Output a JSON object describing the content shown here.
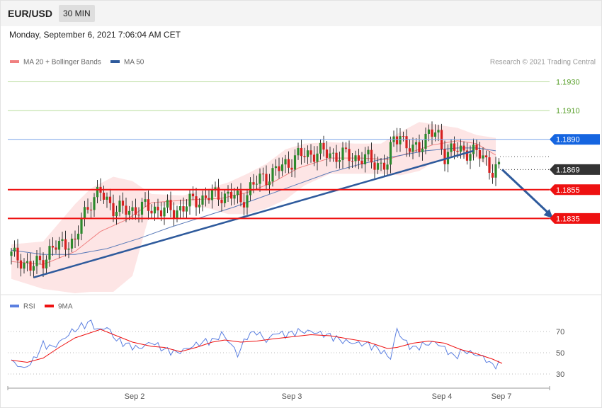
{
  "header": {
    "pair": "EUR/USD",
    "timeframe": "30 MIN",
    "datetime": "Monday, September 6, 2021 7:06:04 AM CET"
  },
  "price_panel": {
    "legend": [
      {
        "label": "MA 20 + Bollinger Bands",
        "color": "#f08080"
      },
      {
        "label": "MA 50",
        "color": "#2e5a9c"
      }
    ],
    "copyright": "Research © 2021 Trading Central",
    "levels": [
      {
        "value": 1.193,
        "label": "1.1930",
        "style": "green-thin",
        "color": "#5aa02c"
      },
      {
        "value": 1.191,
        "label": "1.1910",
        "style": "green-thin",
        "color": "#5aa02c"
      },
      {
        "value": 1.189,
        "label": "1.1890",
        "style": "blue-tag",
        "color": "#1565e0"
      },
      {
        "value": 1.1869,
        "label": "1.1869",
        "style": "current-tag",
        "color": "#333333"
      },
      {
        "value": 1.1855,
        "label": "1.1855",
        "style": "red-tag",
        "color": "#ee1111"
      },
      {
        "value": 1.1835,
        "label": "1.1835",
        "style": "red-tag",
        "color": "#ee1111"
      }
    ]
  },
  "rsi_panel": {
    "legend": [
      {
        "label": "RSI",
        "color": "#5b7fe0"
      },
      {
        "label": "9MA",
        "color": "#ee1111"
      }
    ],
    "levels": [
      "70",
      "50",
      "30"
    ]
  },
  "x_axis": {
    "labels": [
      "Sep 2",
      "Sep 3",
      "Sep 4",
      "Sep 7"
    ]
  },
  "chart_data": {
    "type": "candlestick",
    "price_range": [
      1.1783,
      1.1945
    ],
    "rsi_range": [
      18,
      86
    ],
    "bars": 154,
    "support_line": {
      "start_bar": 7,
      "start_price": 1.1794,
      "end_bar": 145,
      "end_price": 1.1882
    },
    "projection_arrow": {
      "from_bar": 154,
      "from_price": 1.1869,
      "to_bar": 170,
      "to_price": 1.1835
    },
    "bollinger_band": [
      {
        "bar": 0,
        "upper": 1.1817,
        "lower": 1.1793
      },
      {
        "bar": 10,
        "upper": 1.1819,
        "lower": 1.1786
      },
      {
        "bar": 20,
        "upper": 1.1845,
        "lower": 1.1783
      },
      {
        "bar": 25,
        "upper": 1.1856,
        "lower": 1.1784
      },
      {
        "bar": 32,
        "upper": 1.1864,
        "lower": 1.1784
      },
      {
        "bar": 38,
        "upper": 1.1861,
        "lower": 1.1795
      },
      {
        "bar": 44,
        "upper": 1.1852,
        "lower": 1.1843
      },
      {
        "bar": 54,
        "upper": 1.1851,
        "lower": 1.1845
      },
      {
        "bar": 62,
        "upper": 1.1856,
        "lower": 1.1842
      },
      {
        "bar": 68,
        "upper": 1.186,
        "lower": 1.1838
      },
      {
        "bar": 74,
        "upper": 1.1866,
        "lower": 1.1838
      },
      {
        "bar": 80,
        "upper": 1.1873,
        "lower": 1.1842
      },
      {
        "bar": 86,
        "upper": 1.1883,
        "lower": 1.1848
      },
      {
        "bar": 92,
        "upper": 1.1887,
        "lower": 1.1858
      },
      {
        "bar": 100,
        "upper": 1.1888,
        "lower": 1.1866
      },
      {
        "bar": 108,
        "upper": 1.1887,
        "lower": 1.1866
      },
      {
        "bar": 116,
        "upper": 1.1887,
        "lower": 1.1866
      },
      {
        "bar": 122,
        "upper": 1.1895,
        "lower": 1.1865
      },
      {
        "bar": 128,
        "upper": 1.1902,
        "lower": 1.1868
      },
      {
        "bar": 134,
        "upper": 1.19,
        "lower": 1.1876
      },
      {
        "bar": 140,
        "upper": 1.1898,
        "lower": 1.1878
      },
      {
        "bar": 146,
        "upper": 1.1893,
        "lower": 1.1877
      },
      {
        "bar": 152,
        "upper": 1.1891,
        "lower": 1.1867
      }
    ],
    "ma20": [
      {
        "bar": 0,
        "value": 1.1805
      },
      {
        "bar": 10,
        "value": 1.1803
      },
      {
        "bar": 20,
        "value": 1.1812
      },
      {
        "bar": 28,
        "value": 1.1826
      },
      {
        "bar": 36,
        "value": 1.1834
      },
      {
        "bar": 44,
        "value": 1.1846
      },
      {
        "bar": 56,
        "value": 1.1848
      },
      {
        "bar": 66,
        "value": 1.1849
      },
      {
        "bar": 74,
        "value": 1.1853
      },
      {
        "bar": 82,
        "value": 1.186
      },
      {
        "bar": 90,
        "value": 1.187
      },
      {
        "bar": 100,
        "value": 1.1877
      },
      {
        "bar": 110,
        "value": 1.1877
      },
      {
        "bar": 118,
        "value": 1.1876
      },
      {
        "bar": 124,
        "value": 1.188
      },
      {
        "bar": 132,
        "value": 1.1886
      },
      {
        "bar": 140,
        "value": 1.1889
      },
      {
        "bar": 146,
        "value": 1.1887
      },
      {
        "bar": 152,
        "value": 1.1879
      }
    ],
    "ma50": [
      {
        "bar": 0,
        "value": 1.1813
      },
      {
        "bar": 10,
        "value": 1.181
      },
      {
        "bar": 20,
        "value": 1.181
      },
      {
        "bar": 30,
        "value": 1.1814
      },
      {
        "bar": 40,
        "value": 1.1821
      },
      {
        "bar": 50,
        "value": 1.1829
      },
      {
        "bar": 60,
        "value": 1.1836
      },
      {
        "bar": 70,
        "value": 1.1843
      },
      {
        "bar": 80,
        "value": 1.1851
      },
      {
        "bar": 90,
        "value": 1.1859
      },
      {
        "bar": 100,
        "value": 1.1867
      },
      {
        "bar": 110,
        "value": 1.1873
      },
      {
        "bar": 120,
        "value": 1.1878
      },
      {
        "bar": 130,
        "value": 1.1882
      },
      {
        "bar": 140,
        "value": 1.1884
      },
      {
        "bar": 146,
        "value": 1.1884
      },
      {
        "bar": 152,
        "value": 1.1882
      }
    ],
    "close_path": [
      {
        "bar": 0,
        "value": 1.1809
      },
      {
        "bar": 3,
        "value": 1.1807
      },
      {
        "bar": 6,
        "value": 1.18
      },
      {
        "bar": 9,
        "value": 1.1805
      },
      {
        "bar": 12,
        "value": 1.1812
      },
      {
        "bar": 15,
        "value": 1.1816
      },
      {
        "bar": 18,
        "value": 1.182
      },
      {
        "bar": 20,
        "value": 1.1816
      },
      {
        "bar": 22,
        "value": 1.1835
      },
      {
        "bar": 25,
        "value": 1.1848
      },
      {
        "bar": 28,
        "value": 1.1852
      },
      {
        "bar": 30,
        "value": 1.1848
      },
      {
        "bar": 32,
        "value": 1.1843
      },
      {
        "bar": 35,
        "value": 1.184
      },
      {
        "bar": 40,
        "value": 1.1842
      },
      {
        "bar": 45,
        "value": 1.1842
      },
      {
        "bar": 50,
        "value": 1.184
      },
      {
        "bar": 54,
        "value": 1.1843
      },
      {
        "bar": 58,
        "value": 1.1848
      },
      {
        "bar": 62,
        "value": 1.185
      },
      {
        "bar": 66,
        "value": 1.1852
      },
      {
        "bar": 70,
        "value": 1.185
      },
      {
        "bar": 72,
        "value": 1.1847
      },
      {
        "bar": 75,
        "value": 1.1856
      },
      {
        "bar": 79,
        "value": 1.1864
      },
      {
        "bar": 82,
        "value": 1.1866
      },
      {
        "bar": 86,
        "value": 1.1873
      },
      {
        "bar": 90,
        "value": 1.1878
      },
      {
        "bar": 95,
        "value": 1.1881
      },
      {
        "bar": 100,
        "value": 1.188
      },
      {
        "bar": 105,
        "value": 1.1878
      },
      {
        "bar": 110,
        "value": 1.1877
      },
      {
        "bar": 114,
        "value": 1.1874
      },
      {
        "bar": 118,
        "value": 1.1872
      },
      {
        "bar": 120,
        "value": 1.189
      },
      {
        "bar": 122,
        "value": 1.1895
      },
      {
        "bar": 124,
        "value": 1.1885
      },
      {
        "bar": 126,
        "value": 1.1881
      },
      {
        "bar": 128,
        "value": 1.1886
      },
      {
        "bar": 131,
        "value": 1.1895
      },
      {
        "bar": 134,
        "value": 1.1891
      },
      {
        "bar": 136,
        "value": 1.188
      },
      {
        "bar": 138,
        "value": 1.1883
      },
      {
        "bar": 141,
        "value": 1.1881
      },
      {
        "bar": 144,
        "value": 1.1883
      },
      {
        "bar": 146,
        "value": 1.188
      },
      {
        "bar": 149,
        "value": 1.1875
      },
      {
        "bar": 151,
        "value": 1.1869
      },
      {
        "bar": 154,
        "value": 1.1869
      }
    ],
    "rsi": [
      {
        "bar": 0,
        "value": 42
      },
      {
        "bar": 4,
        "value": 35
      },
      {
        "bar": 7,
        "value": 43
      },
      {
        "bar": 10,
        "value": 58
      },
      {
        "bar": 13,
        "value": 55
      },
      {
        "bar": 16,
        "value": 62
      },
      {
        "bar": 19,
        "value": 70
      },
      {
        "bar": 22,
        "value": 75
      },
      {
        "bar": 25,
        "value": 79
      },
      {
        "bar": 27,
        "value": 71
      },
      {
        "bar": 30,
        "value": 74
      },
      {
        "bar": 33,
        "value": 62
      },
      {
        "bar": 36,
        "value": 58
      },
      {
        "bar": 40,
        "value": 54
      },
      {
        "bar": 44,
        "value": 60
      },
      {
        "bar": 48,
        "value": 53
      },
      {
        "bar": 52,
        "value": 50
      },
      {
        "bar": 56,
        "value": 55
      },
      {
        "bar": 60,
        "value": 60
      },
      {
        "bar": 64,
        "value": 62
      },
      {
        "bar": 66,
        "value": 68
      },
      {
        "bar": 69,
        "value": 58
      },
      {
        "bar": 71,
        "value": 48
      },
      {
        "bar": 74,
        "value": 66
      },
      {
        "bar": 77,
        "value": 70
      },
      {
        "bar": 80,
        "value": 61
      },
      {
        "bar": 83,
        "value": 69
      },
      {
        "bar": 86,
        "value": 67
      },
      {
        "bar": 90,
        "value": 70
      },
      {
        "bar": 94,
        "value": 70
      },
      {
        "bar": 97,
        "value": 68
      },
      {
        "bar": 100,
        "value": 66
      },
      {
        "bar": 104,
        "value": 61
      },
      {
        "bar": 108,
        "value": 59
      },
      {
        "bar": 112,
        "value": 58
      },
      {
        "bar": 116,
        "value": 52
      },
      {
        "bar": 119,
        "value": 45
      },
      {
        "bar": 121,
        "value": 72
      },
      {
        "bar": 123,
        "value": 62
      },
      {
        "bar": 126,
        "value": 54
      },
      {
        "bar": 130,
        "value": 58
      },
      {
        "bar": 133,
        "value": 60
      },
      {
        "bar": 136,
        "value": 54
      },
      {
        "bar": 139,
        "value": 46
      },
      {
        "bar": 142,
        "value": 52
      },
      {
        "bar": 145,
        "value": 49
      },
      {
        "bar": 148,
        "value": 46
      },
      {
        "bar": 151,
        "value": 38
      },
      {
        "bar": 154,
        "value": 40
      }
    ],
    "rsi_9ma": [
      {
        "bar": 0,
        "value": 43
      },
      {
        "bar": 5,
        "value": 41
      },
      {
        "bar": 10,
        "value": 45
      },
      {
        "bar": 15,
        "value": 55
      },
      {
        "bar": 20,
        "value": 64
      },
      {
        "bar": 25,
        "value": 69
      },
      {
        "bar": 28,
        "value": 72
      },
      {
        "bar": 33,
        "value": 66
      },
      {
        "bar": 38,
        "value": 60
      },
      {
        "bar": 44,
        "value": 56
      },
      {
        "bar": 48,
        "value": 55
      },
      {
        "bar": 53,
        "value": 51
      },
      {
        "bar": 58,
        "value": 55
      },
      {
        "bar": 63,
        "value": 60
      },
      {
        "bar": 67,
        "value": 62
      },
      {
        "bar": 72,
        "value": 60
      },
      {
        "bar": 77,
        "value": 61
      },
      {
        "bar": 82,
        "value": 63
      },
      {
        "bar": 88,
        "value": 65
      },
      {
        "bar": 94,
        "value": 67
      },
      {
        "bar": 100,
        "value": 66
      },
      {
        "bar": 106,
        "value": 63
      },
      {
        "bar": 112,
        "value": 60
      },
      {
        "bar": 118,
        "value": 54
      },
      {
        "bar": 121,
        "value": 55
      },
      {
        "bar": 126,
        "value": 59
      },
      {
        "bar": 131,
        "value": 61
      },
      {
        "bar": 136,
        "value": 59
      },
      {
        "bar": 141,
        "value": 53
      },
      {
        "bar": 146,
        "value": 49
      },
      {
        "bar": 151,
        "value": 44
      },
      {
        "bar": 154,
        "value": 40
      }
    ]
  }
}
